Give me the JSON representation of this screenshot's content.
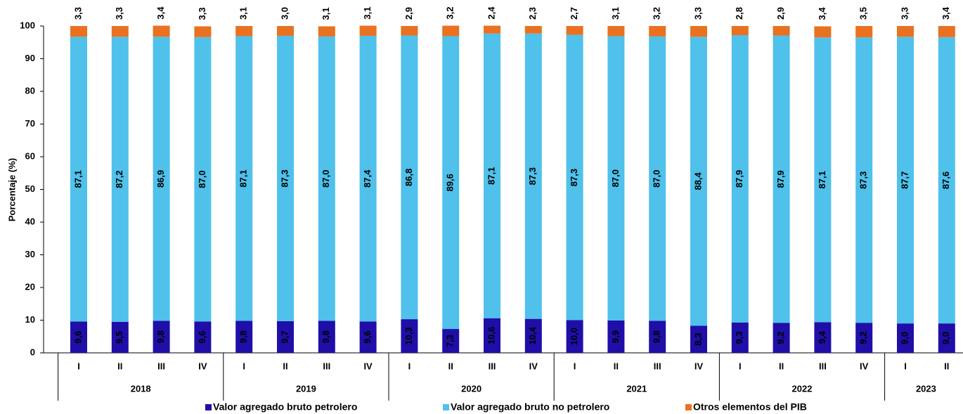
{
  "chart_data": {
    "type": "stacked_bar",
    "y_label": "Porcentaje (%)",
    "categories": [
      "I",
      "II",
      "III",
      "IV",
      "I",
      "II",
      "III",
      "IV",
      "I",
      "II",
      "III",
      "IV",
      "I",
      "II",
      "III",
      "IV",
      "I",
      "II",
      "III",
      "IV",
      "I",
      "II"
    ],
    "years": [
      "2018",
      "2019",
      "2020",
      "2021",
      "2022",
      "2023"
    ],
    "ylim": [
      0,
      100
    ],
    "yticks": [
      0,
      10,
      20,
      30,
      40,
      50,
      60,
      70,
      80,
      90,
      100
    ],
    "legend": "bottom",
    "series": [
      {
        "name": "Valor agregado bruto petrolero",
        "color": "#1f0fa8",
        "values": [
          9.6,
          9.5,
          9.8,
          9.6,
          9.8,
          9.7,
          9.8,
          9.6,
          10.3,
          7.3,
          10.6,
          10.4,
          10.0,
          9.9,
          9.8,
          8.3,
          9.3,
          9.2,
          9.4,
          9.2,
          9.0,
          9.0
        ],
        "value_labels": [
          "9,6",
          "9,5",
          "9,8",
          "9,6",
          "9,8",
          "9,7",
          "9,8",
          "9,6",
          "10,3",
          "7,3",
          "10,6",
          "10,4",
          "10,0",
          "9,9",
          "9,8",
          "8,3",
          "9,3",
          "9,2",
          "9,4",
          "9,2",
          "9,0",
          "9,0"
        ]
      },
      {
        "name": "Valor agregado bruto no petrolero",
        "color": "#4fc1eb",
        "values": [
          87.1,
          87.2,
          86.9,
          87.0,
          87.1,
          87.3,
          87.0,
          87.4,
          86.8,
          89.6,
          87.1,
          87.3,
          87.3,
          87.0,
          87.0,
          88.4,
          87.9,
          87.9,
          87.1,
          87.3,
          87.7,
          87.6
        ],
        "value_labels": [
          "87,1",
          "87,2",
          "86,9",
          "87,0",
          "87,1",
          "87,3",
          "87,0",
          "87,4",
          "86,8",
          "89,6",
          "87,1",
          "87,3",
          "87,3",
          "87,0",
          "87,0",
          "88,4",
          "87,9",
          "87,9",
          "87,1",
          "87,3",
          "87,7",
          "87,6"
        ]
      },
      {
        "name": "Otros elementos del PIB",
        "color": "#ea7120",
        "values": [
          3.3,
          3.3,
          3.4,
          3.3,
          3.1,
          3.0,
          3.1,
          3.1,
          2.9,
          3.2,
          2.4,
          2.3,
          2.7,
          3.1,
          3.2,
          3.3,
          2.8,
          2.9,
          3.4,
          3.5,
          3.3,
          3.4
        ],
        "value_labels": [
          "3,3",
          "3,3",
          "3,4",
          "3,3",
          "3,1",
          "3,0",
          "3,1",
          "3,1",
          "2,9",
          "3,2",
          "2,4",
          "2,3",
          "2,7",
          "3,1",
          "3,2",
          "3,3",
          "2,8",
          "2,9",
          "3,4",
          "3,5",
          "3,3",
          "3,4"
        ]
      }
    ]
  }
}
